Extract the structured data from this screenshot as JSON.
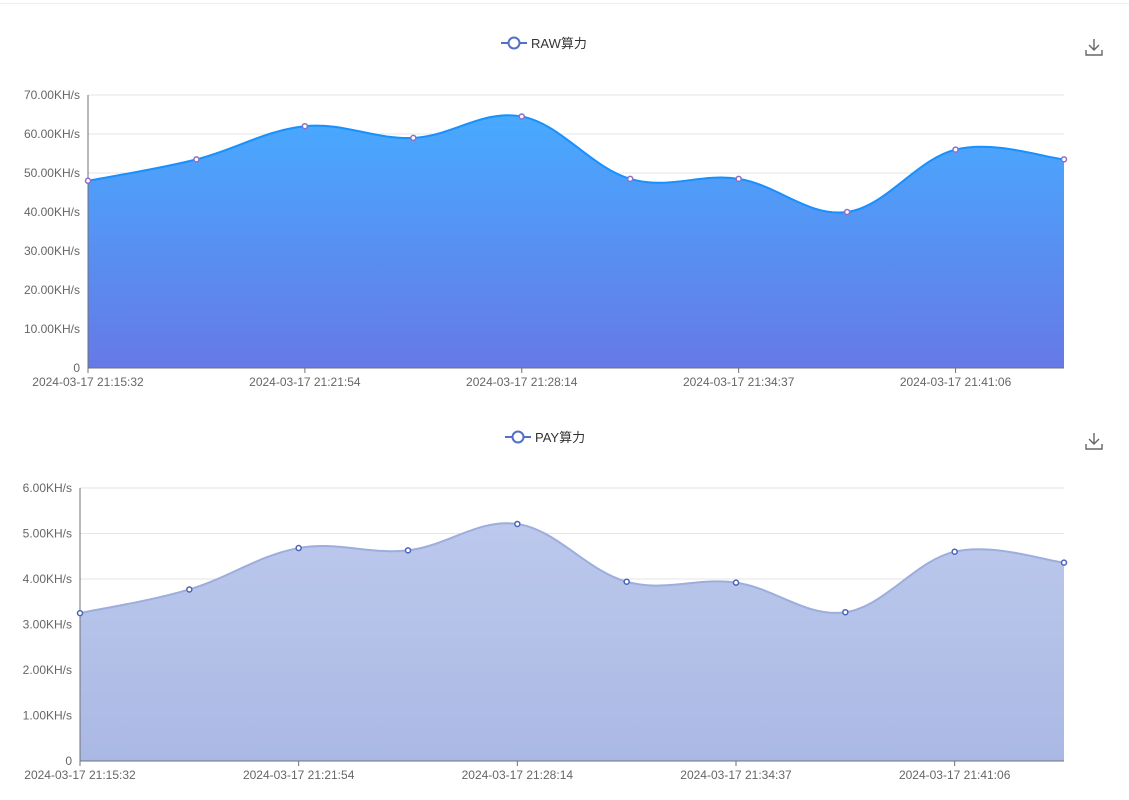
{
  "chart_data": [
    {
      "type": "area",
      "legend": "RAW算力",
      "x": [
        "2024-03-17 21:15:32",
        "",
        "2024-03-17 21:21:54",
        "",
        "2024-03-17 21:28:14",
        "",
        "2024-03-17 21:34:37",
        "",
        "2024-03-17 21:41:06",
        ""
      ],
      "x_tick_labels": [
        "2024-03-17 21:15:32",
        "2024-03-17 21:21:54",
        "2024-03-17 21:28:14",
        "2024-03-17 21:34:37",
        "2024-03-17 21:41:06"
      ],
      "series": [
        {
          "name": "RAW算力",
          "values": [
            48.0,
            53.5,
            62.0,
            59.0,
            64.5,
            48.5,
            48.5,
            40.0,
            56.0,
            53.5
          ]
        }
      ],
      "ylim": [
        0,
        70
      ],
      "y_ticks": [
        0,
        10,
        20,
        30,
        40,
        50,
        60,
        70
      ],
      "y_tick_labels": [
        "0",
        "10.00KH/s",
        "20.00KH/s",
        "30.00KH/s",
        "40.00KH/s",
        "50.00KH/s",
        "60.00KH/s",
        "70.00KH/s"
      ],
      "colors": {
        "line": "#1890ff",
        "fill_top": "#48aaff",
        "fill_bottom": "#6679e6",
        "marker": "#8d6fc9"
      },
      "grid": true,
      "legend_position": "top-center"
    },
    {
      "type": "area",
      "legend": "PAY算力",
      "x": [
        "2024-03-17 21:15:32",
        "",
        "2024-03-17 21:21:54",
        "",
        "2024-03-17 21:28:14",
        "",
        "2024-03-17 21:34:37",
        "",
        "2024-03-17 21:41:06",
        ""
      ],
      "x_tick_labels": [
        "2024-03-17 21:15:32",
        "2024-03-17 21:21:54",
        "2024-03-17 21:28:14",
        "2024-03-17 21:34:37",
        "2024-03-17 21:41:06"
      ],
      "series": [
        {
          "name": "PAY算力",
          "values": [
            3.25,
            3.77,
            4.68,
            4.63,
            5.21,
            3.94,
            3.92,
            3.27,
            4.6,
            4.36
          ]
        }
      ],
      "ylim": [
        0,
        6
      ],
      "y_ticks": [
        0,
        1,
        2,
        3,
        4,
        5,
        6
      ],
      "y_tick_labels": [
        "0",
        "1.00KH/s",
        "2.00KH/s",
        "3.00KH/s",
        "4.00KH/s",
        "5.00KH/s",
        "6.00KH/s"
      ],
      "colors": {
        "line": "#9daedd",
        "fill_top": "#bcc8ec",
        "fill_bottom": "#aab9e4",
        "marker": "#4a64b8"
      },
      "grid": true,
      "legend_position": "top-center"
    }
  ],
  "icons": {
    "download": "download-icon",
    "legend_marker": "legend-circle-line-icon"
  }
}
